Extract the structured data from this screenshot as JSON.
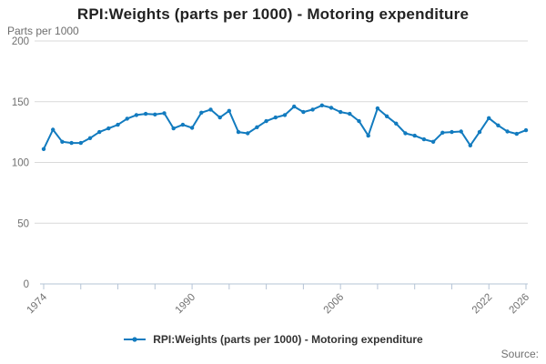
{
  "header": {
    "title": "RPI:Weights (parts per 1000) - Motoring expenditure",
    "units_label": "Parts per 1000"
  },
  "legend": {
    "series_label": "RPI:Weights (parts per 1000) - Motoring expenditure"
  },
  "footer": {
    "source_label": "Source:"
  },
  "colors": {
    "series": "#127bbf",
    "grid": "#d9d9d9",
    "axis": "#b5c4d6",
    "tick_text": "#707070",
    "title_text": "#222222"
  },
  "chart_data": {
    "type": "line",
    "title": "RPI:Weights (parts per 1000) - Motoring expenditure",
    "xlabel": "",
    "ylabel": "Parts per 1000",
    "ylim": [
      0,
      200
    ],
    "yticks": [
      0,
      50,
      100,
      150,
      200
    ],
    "x_labeled_ticks": [
      1974,
      1990,
      2006,
      2022,
      2026
    ],
    "x_minor_tick_step": 4,
    "grid": "horizontal",
    "legend_position": "bottom",
    "marker": "circle",
    "x": [
      1974,
      1975,
      1976,
      1977,
      1978,
      1979,
      1980,
      1981,
      1982,
      1983,
      1984,
      1985,
      1986,
      1987,
      1988,
      1989,
      1990,
      1991,
      1992,
      1993,
      1994,
      1995,
      1996,
      1997,
      1998,
      1999,
      2000,
      2001,
      2002,
      2003,
      2004,
      2005,
      2006,
      2007,
      2008,
      2009,
      2010,
      2011,
      2012,
      2013,
      2014,
      2015,
      2016,
      2017,
      2018,
      2019,
      2020,
      2021,
      2022,
      2023,
      2024,
      2025,
      2026
    ],
    "values": [
      111,
      127,
      117,
      116,
      116,
      120,
      125,
      128,
      131,
      136,
      139,
      140,
      139.5,
      140.5,
      128,
      131,
      128.5,
      141,
      143.5,
      137,
      142.5,
      125,
      124,
      129,
      134,
      137,
      139,
      146,
      141.5,
      143.5,
      147,
      145,
      141.5,
      140,
      134,
      122,
      144.5,
      138,
      132,
      124,
      122,
      119,
      117,
      124.5,
      125,
      125.5,
      114,
      125,
      136.5,
      130.5,
      125.5,
      123.5,
      126.5
    ]
  }
}
